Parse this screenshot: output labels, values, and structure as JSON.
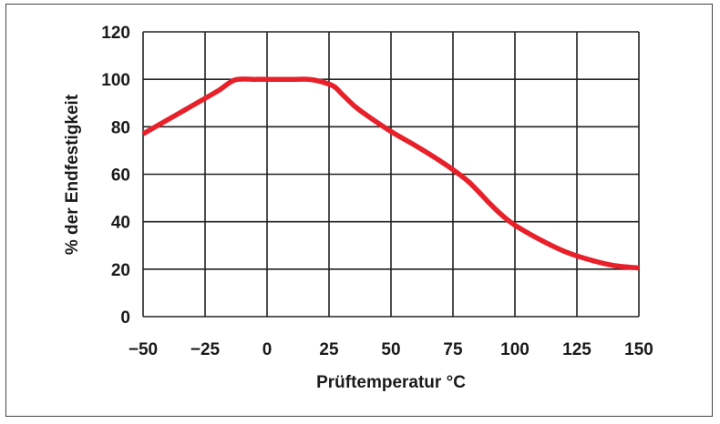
{
  "chart_data": {
    "type": "line",
    "title": "",
    "xlabel": "Prüftemperatur °C",
    "ylabel": "% der Endfestigkeit",
    "xlim": [
      -50,
      150
    ],
    "ylim": [
      0,
      120
    ],
    "x_ticks": [
      -50,
      -25,
      0,
      25,
      50,
      75,
      100,
      125,
      150
    ],
    "x_tick_labels": [
      "−50",
      "−25",
      "0",
      "25",
      "50",
      "75",
      "100",
      "125",
      "150"
    ],
    "y_ticks": [
      0,
      20,
      40,
      60,
      80,
      100,
      120
    ],
    "y_tick_labels": [
      "0",
      "20",
      "40",
      "60",
      "80",
      "100",
      "120"
    ],
    "grid": true,
    "series": [
      {
        "color": "#e8202a",
        "x": [
          -50,
          -40,
          -30,
          -20,
          -13,
          -5,
          0,
          10,
          17,
          22,
          27,
          30,
          35,
          40,
          50,
          60,
          70,
          80,
          85,
          90,
          95,
          100,
          110,
          120,
          130,
          140,
          150
        ],
        "y": [
          77,
          83,
          89,
          95,
          99.7,
          100,
          100,
          100,
          100,
          99,
          97,
          94,
          89,
          85,
          78,
          72,
          65.5,
          58,
          53,
          47.5,
          42.5,
          38.5,
          32.5,
          27.5,
          24,
          21.5,
          20.5
        ]
      }
    ]
  }
}
